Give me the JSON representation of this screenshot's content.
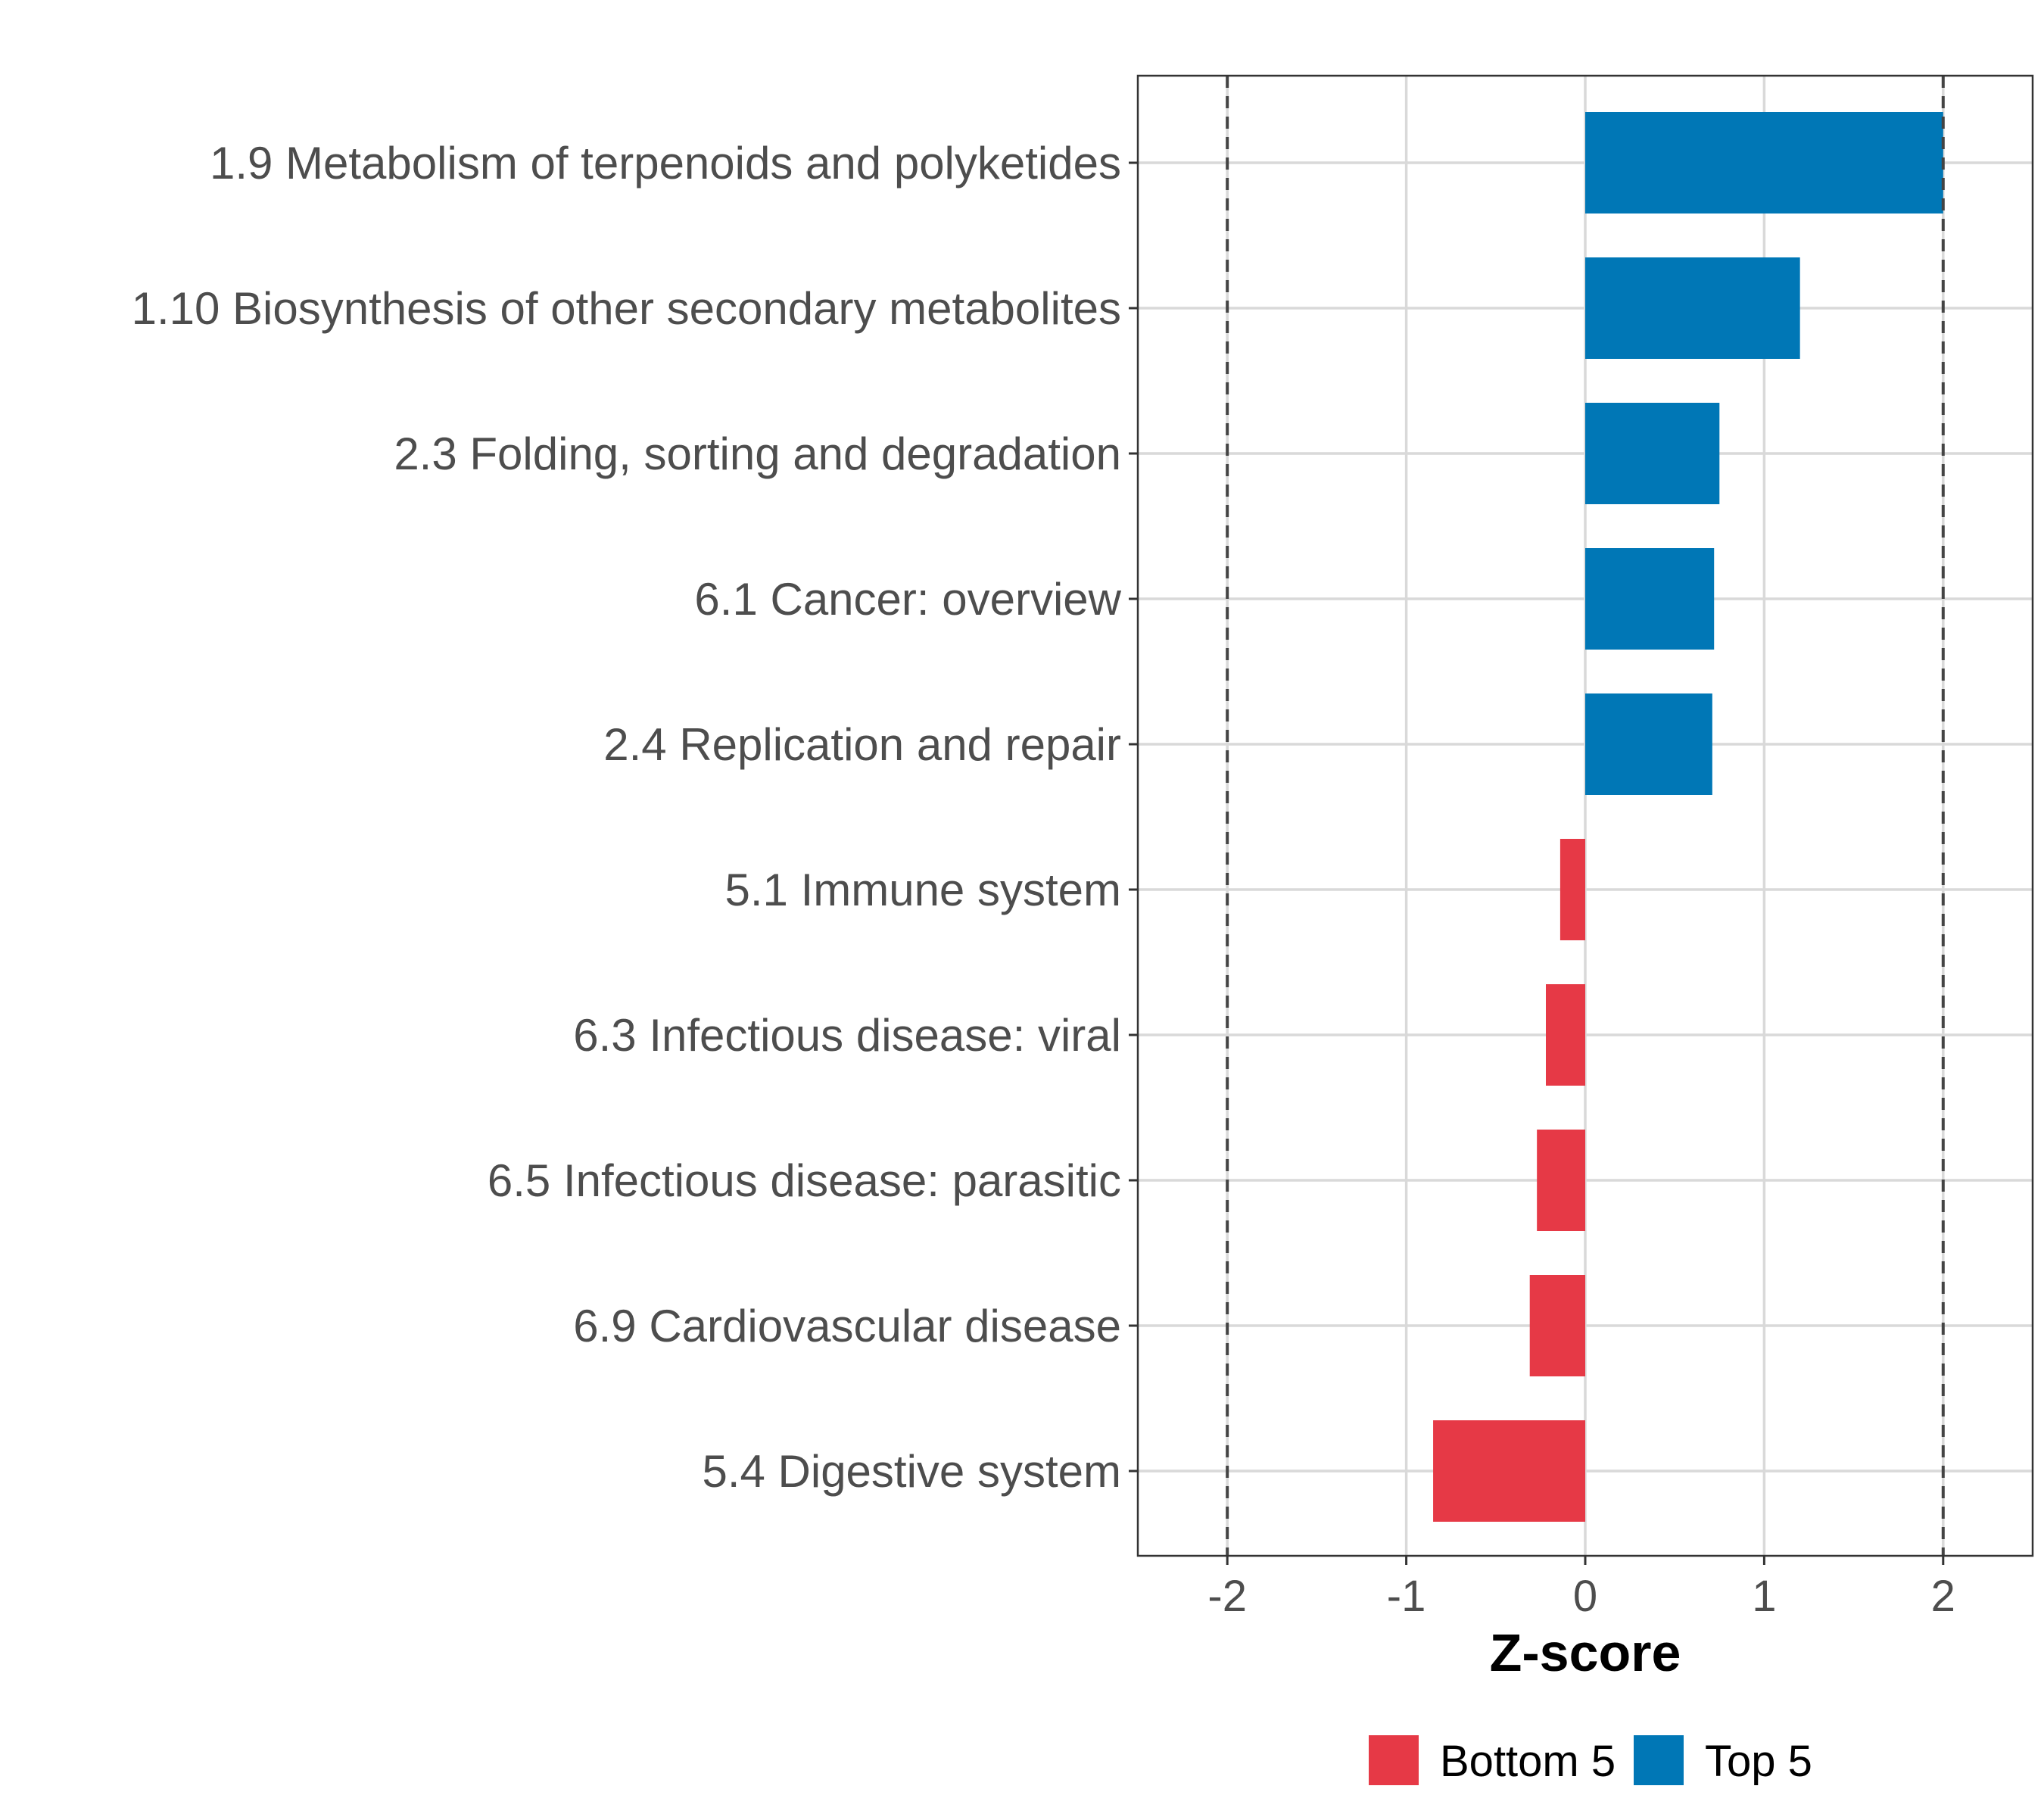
{
  "chart_data": {
    "type": "bar",
    "orientation": "horizontal",
    "categories": [
      "1.9 Metabolism of terpenoids and polyketides",
      "1.10 Biosynthesis of other secondary metabolites",
      "2.3 Folding, sorting and degradation",
      "6.1 Cancer: overview",
      "2.4 Replication and repair",
      "5.1 Immune system",
      "6.3 Infectious disease: viral",
      "6.5 Infectious disease: parasitic",
      "6.9 Cardiovascular disease",
      "5.4 Digestive system"
    ],
    "values": [
      2.0,
      1.2,
      0.75,
      0.72,
      0.71,
      -0.14,
      -0.22,
      -0.27,
      -0.31,
      -0.85
    ],
    "groups": [
      "Top 5",
      "Top 5",
      "Top 5",
      "Top 5",
      "Top 5",
      "Bottom 5",
      "Bottom 5",
      "Bottom 5",
      "Bottom 5",
      "Bottom 5"
    ],
    "xlabel": "Z-score",
    "ylabel": "",
    "xlim": [
      -2.5,
      2.5
    ],
    "xticks": [
      -2,
      -1,
      0,
      1,
      2
    ],
    "xtick_labels": [
      "-2",
      "-1",
      "0",
      "1",
      "2"
    ],
    "reference_lines": [
      -2,
      2
    ],
    "grid": true,
    "legend": {
      "position": "bottom",
      "entries": [
        {
          "label": "Bottom 5",
          "color": "#e63946"
        },
        {
          "label": "Top 5",
          "color": "#0077b6"
        }
      ]
    },
    "colors": {
      "Top 5": "#0077b6",
      "Bottom 5": "#e63946"
    }
  }
}
